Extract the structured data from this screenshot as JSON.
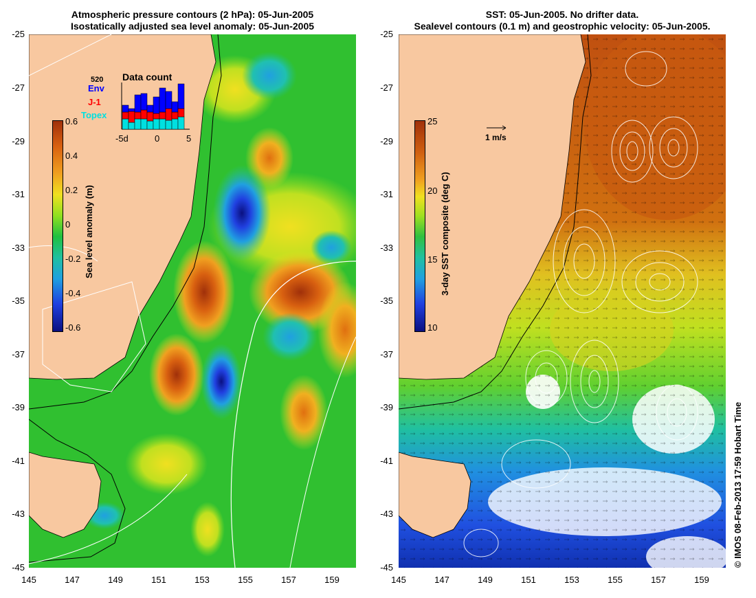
{
  "left_panel": {
    "title_line1": "Atmospheric pressure contours (2 hPa): 05-Jun-2005",
    "title_line2": "Isostatically adjusted sea level anomaly: 05-Jun-2005",
    "colorbar": {
      "label": "Sea level anomaly (m)",
      "ticks": [
        "0.6",
        "0.4",
        "0.2",
        "0",
        "-0.2",
        "-0.4",
        "-0.6"
      ],
      "colors": [
        "#a0300a",
        "#d86010",
        "#f0a020",
        "#f0e020",
        "#90e020",
        "#20c040",
        "#20c0a0",
        "#20a0e0",
        "#2040e0",
        "#0a1080"
      ]
    },
    "data_count": {
      "title": "Data count",
      "max_label": "520",
      "legend": [
        {
          "name": "Env",
          "color": "#0000ff"
        },
        {
          "name": "J-1",
          "color": "#ff0000"
        },
        {
          "name": "Topex",
          "color": "#00e0e0"
        }
      ],
      "x_ticks": [
        "-5d",
        "0",
        "5"
      ]
    }
  },
  "right_panel": {
    "title_line1": "SST: 05-Jun-2005. No drifter data.",
    "title_line2": "Sealevel contours (0.1 m) and geostrophic velocity: 05-Jun-2005.",
    "colorbar": {
      "label": "3-day SST composite (deg C)",
      "ticks": [
        "25",
        "20",
        "15",
        "10"
      ],
      "colors": [
        "#a0300a",
        "#d06010",
        "#f0a020",
        "#f0e020",
        "#a0e020",
        "#30c040",
        "#20c0a0",
        "#20a0e0",
        "#2040e0",
        "#0a1080"
      ]
    },
    "velocity_scale": "1 m/s"
  },
  "axes": {
    "lat_labels": [
      "-25",
      "-27",
      "-29",
      "-31",
      "-33",
      "-35",
      "-37",
      "-39",
      "-41",
      "-43",
      "-45"
    ],
    "lon_labels": [
      "145",
      "147",
      "149",
      "151",
      "153",
      "155",
      "157",
      "159"
    ]
  },
  "colors": {
    "land": "#f8c8a0",
    "ocean_base": "#20c020",
    "sst_warm": "#d06010",
    "sst_cold": "#2060e0"
  },
  "copyright": "© IMOS 08-Feb-2013 17:59 Hobart Time"
}
